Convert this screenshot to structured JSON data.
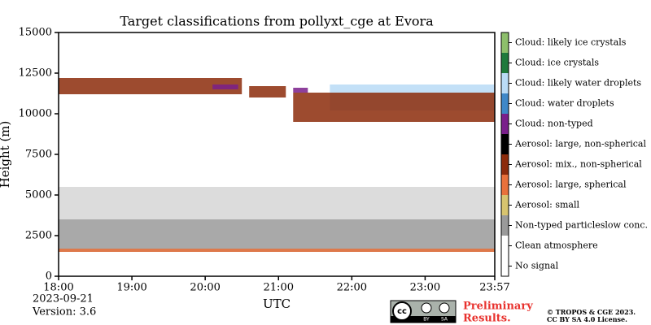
{
  "chart_data": {
    "type": "classification",
    "title": "Target classifications from pollyxt_cge at Evora",
    "xlabel": "UTC",
    "ylabel": "Height (m)",
    "xlim": [
      18,
      23.95
    ],
    "xticks": [
      {
        "value": 18,
        "label": "18:00"
      },
      {
        "value": 19,
        "label": "19:00"
      },
      {
        "value": 20,
        "label": "20:00"
      },
      {
        "value": 21,
        "label": "21:00"
      },
      {
        "value": 22,
        "label": "22:00"
      },
      {
        "value": 23,
        "label": "23:00"
      },
      {
        "value": 23.95,
        "label": "23:57"
      }
    ],
    "ylim": [
      0,
      15000
    ],
    "yticks": [
      0,
      2500,
      5000,
      7500,
      10000,
      12500,
      15000
    ],
    "classes": [
      {
        "name": "Cloud: likely ice crystals",
        "color": "#8dbf6b"
      },
      {
        "name": "Cloud: ice crystals",
        "color": "#1f7a3c"
      },
      {
        "name": "Cloud: likely water droplets",
        "color": "#b9dbf6"
      },
      {
        "name": "Cloud: water droplets",
        "color": "#3f88c8"
      },
      {
        "name": "Cloud: non-typed",
        "color": "#7a1f8b"
      },
      {
        "name": "Aerosol: large, non-spherical",
        "color": "#000000"
      },
      {
        "name": "Aerosol: mix., non-spherical",
        "color": "#8c2b0b"
      },
      {
        "name": "Aerosol: large, spherical",
        "color": "#e8713b"
      },
      {
        "name": "Aerosol: small",
        "color": "#d8c46f"
      },
      {
        "name": "Non-typed particleslow conc.",
        "color": "#9a9a9a"
      },
      {
        "name": "Clean atmosphere",
        "color": "#ffffff"
      },
      {
        "name": "No signal",
        "color": "#ffffff"
      }
    ],
    "regions": [
      {
        "class": 9,
        "x": [
          18,
          23.95
        ],
        "y": [
          3500,
          5500
        ]
      },
      {
        "class": 9,
        "x": [
          18,
          23.95
        ],
        "y": [
          1500,
          3500
        ]
      },
      {
        "class": 7,
        "x": [
          18,
          23.95
        ],
        "y": [
          1500,
          1700
        ]
      },
      {
        "class": 2,
        "x": [
          21.7,
          23.95
        ],
        "y": [
          10200,
          11800
        ]
      },
      {
        "class": 6,
        "x": [
          18,
          20.5
        ],
        "y": [
          11200,
          12200
        ]
      },
      {
        "class": 6,
        "x": [
          20.6,
          21.1
        ],
        "y": [
          11000,
          11700
        ]
      },
      {
        "class": 6,
        "x": [
          21.2,
          23.95
        ],
        "y": [
          9500,
          11300
        ]
      },
      {
        "class": 4,
        "x": [
          20.1,
          20.45
        ],
        "y": [
          11500,
          11800
        ]
      },
      {
        "class": 4,
        "x": [
          21.2,
          21.4
        ],
        "y": [
          11300,
          11600
        ]
      }
    ],
    "date": "2023-09-21",
    "version": "Version: 3.6"
  },
  "footer": {
    "badge": [
      "BY",
      "SA"
    ],
    "notice": [
      "Preliminary",
      "Results."
    ],
    "copyright": [
      "© TROPOS & CGE 2023.",
      "CC BY SA 4.0 License."
    ]
  }
}
